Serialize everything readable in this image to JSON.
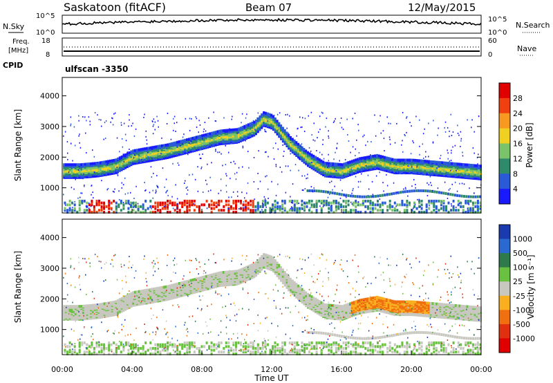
{
  "header": {
    "station": "Saskatoon (fitACF)",
    "beam": "Beam 07",
    "date": "12/May/2015"
  },
  "side_labels": {
    "nsky": "N.Sky",
    "nsearch": "N.Search",
    "freq_line1": "Freq.",
    "freq_line2": "[MHz]",
    "nave": "Nave",
    "cpid": "CPID"
  },
  "noise_axis": {
    "left_ticks": [
      "10^5",
      "10^0"
    ],
    "right_ticks": [
      "10^5",
      "10^0"
    ]
  },
  "freq_axis": {
    "left_ticks": [
      "18",
      "8"
    ],
    "right_ticks": [
      "60",
      "0"
    ]
  },
  "cpid_text": "ulfscan -3350",
  "chart_data": [
    {
      "type": "heatmap",
      "panel": "power",
      "ylabel": "Slant Range [km]",
      "yticks": [
        1000,
        2000,
        3000,
        4000
      ],
      "ylim": [
        180,
        4600
      ],
      "xlabel": "Time UT",
      "xticks": [
        "00:00",
        "04:00",
        "08:00",
        "12:00",
        "16:00",
        "20:00",
        "00:00"
      ],
      "xlim_hours": [
        0,
        24
      ],
      "colorbar_label": "Power [dB]",
      "colorbar_ticks": [
        "28",
        "24",
        "20",
        "16",
        "12",
        "8",
        "4"
      ],
      "colors": [
        "#1a1aff",
        "#2a5ad8",
        "#2e8a6a",
        "#7bc36a",
        "#f0d020",
        "#f89a20",
        "#f04010",
        "#e00000"
      ],
      "band_hours": [
        0,
        1,
        2,
        3,
        4,
        5,
        6,
        7,
        8,
        9,
        10,
        11,
        11.5,
        12,
        13,
        14,
        15,
        16,
        17,
        18,
        19,
        20,
        21,
        22,
        23,
        24
      ],
      "main_band_km": [
        1600,
        1600,
        1650,
        1750,
        2050,
        2150,
        2250,
        2400,
        2550,
        2700,
        2750,
        3000,
        3300,
        3200,
        2500,
        2000,
        1650,
        1600,
        1800,
        1900,
        1750,
        1750,
        1700,
        1650,
        1600,
        1550
      ]
    },
    {
      "type": "heatmap",
      "panel": "velocity",
      "ylabel": "Slant Range [km]",
      "yticks": [
        1000,
        2000,
        3000,
        4000
      ],
      "ylim": [
        180,
        4600
      ],
      "colorbar_label": "Velocity [m s⁻¹]",
      "colorbar_ticks": [
        "1000",
        "500",
        "100",
        "25",
        "-25",
        "-100",
        "-500",
        "-1000"
      ],
      "colors": [
        "#1a3ab0",
        "#2a6ad0",
        "#2e7a4a",
        "#6ac040",
        "#c8c8c0",
        "#f8b020",
        "#f07010",
        "#e03010",
        "#e00000"
      ]
    }
  ]
}
